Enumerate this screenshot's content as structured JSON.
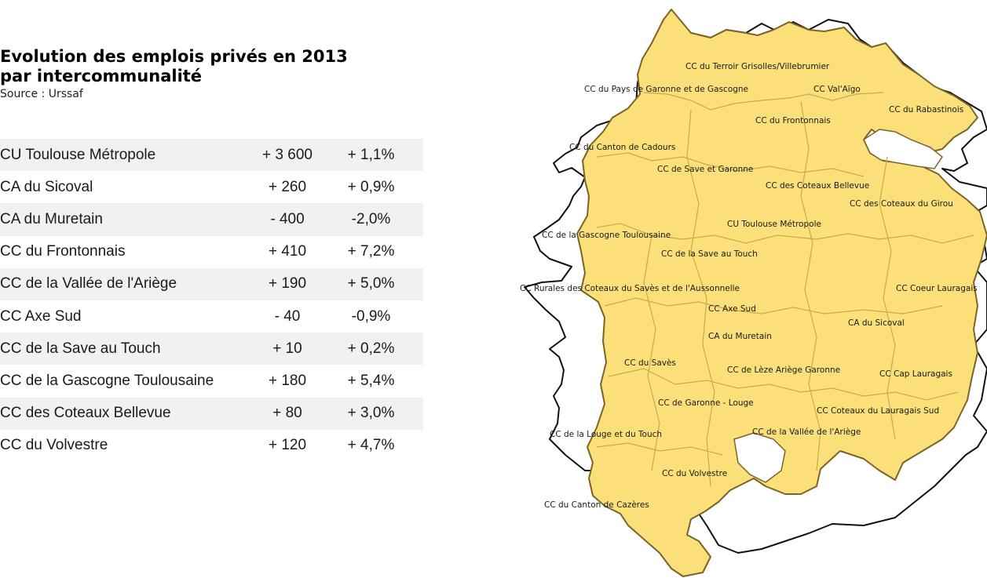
{
  "header": {
    "title_line1": "Evolution des emplois privés en 2013",
    "title_line2": "par intercommunalité",
    "source": "Source : Urssaf"
  },
  "table": {
    "rows": [
      {
        "name": "CU Toulouse Métropole",
        "value": "+ 3 600",
        "pct": "+ 1,1%"
      },
      {
        "name": "CA du Sicoval",
        "value": "+ 260",
        "pct": "+ 0,9%"
      },
      {
        "name": "CA du Muretain",
        "value": "- 400",
        "pct": "-2,0%"
      },
      {
        "name": "CC du Frontonnais",
        "value": "+ 410",
        "pct": "+ 7,2%"
      },
      {
        "name": "CC de la Vallée de l'Ariège",
        "value": "+ 190",
        "pct": "+ 5,0%"
      },
      {
        "name": "CC Axe Sud",
        "value": "- 40",
        "pct": "-0,9%"
      },
      {
        "name": "CC de la Save au Touch",
        "value": "+ 10",
        "pct": "+ 0,2%"
      },
      {
        "name": "CC de la Gascogne Toulousaine",
        "value": "+ 180",
        "pct": "+ 5,4%"
      },
      {
        "name": "CC des Coteaux Bellevue",
        "value": "+ 80",
        "pct": "+ 3,0%"
      },
      {
        "name": "CC du Volvestre",
        "value": "+ 120",
        "pct": "+ 4,7%"
      }
    ]
  },
  "map": {
    "fill_color": "#fbdf79",
    "border_color": "#7a6428",
    "labels": {
      "terroir": "CC du Terroir Grisolles/Villebrumier",
      "pays_garonne": "CC du Pays de Garonne et de Gascogne",
      "val_aigo": "CC Val'Aïgo",
      "rabastinois": "CC du Rabastinois",
      "frontonnais": "CC du Frontonnais",
      "cadours": "CC du Canton de Cadours",
      "save_garonne": "CC de Save et Garonne",
      "coteaux_bellevue": "CC des Coteaux Bellevue",
      "coteaux_girou": "CC des Coteaux du Girou",
      "toulouse": "CU Toulouse Métropole",
      "gascogne": "CC de la Gascogne Toulousaine",
      "save_touch": "CC de la Save au Touch",
      "rurales": "CC Rurales des Coteaux du Savès et de l'Aussonnelle",
      "coeur_lauragais": "CC Coeur Lauragais",
      "axe_sud": "CC Axe Sud",
      "sicoval": "CA du Sicoval",
      "muretain": "CA du Muretain",
      "saves": "CC du Savès",
      "leze": "CC de Lèze Ariège Garonne",
      "cap_lauragais": "CC Cap Lauragais",
      "garonne_louge": "CC de Garonne - Louge",
      "coteaux_lauragais_sud": "CC Coteaux du Lauragais Sud",
      "louge_touch": "CC de la Louge et du Touch",
      "vallee_ariege": "CC de la Vallée de l'Ariège",
      "volvestre": "CC du Volvestre",
      "cazeres": "CC du Canton de Cazères"
    }
  }
}
